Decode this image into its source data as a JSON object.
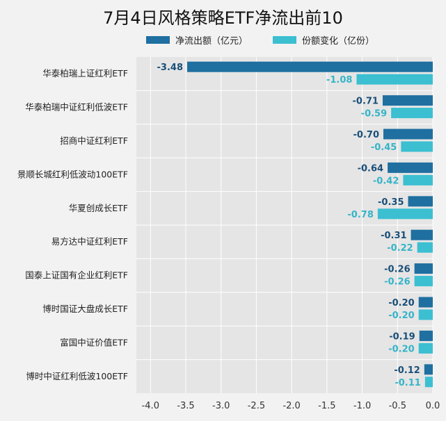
{
  "chart_data": {
    "type": "bar",
    "orientation": "horizontal",
    "title": "7月4日风格策略ETF净流出前10",
    "categories": [
      "华泰柏瑞上证红利ETF",
      "华泰柏瑞中证红利低波ETF",
      "招商中证红利ETF",
      "景顺长城红利低波动100ETF",
      "华夏创成长ETF",
      "易方达中证红利ETF",
      "国泰上证国有企业红利ETF",
      "博时国证大盘成长ETF",
      "富国中证价值ETF",
      "博时中证红利低波100ETF"
    ],
    "series": [
      {
        "name": "净流出额（亿元）",
        "color": "#1f6fa0",
        "label_color": "#1a4f78",
        "values": [
          -3.48,
          -0.71,
          -0.7,
          -0.64,
          -0.35,
          -0.31,
          -0.26,
          -0.2,
          -0.19,
          -0.12
        ],
        "labels": [
          "-3.48",
          "-0.71",
          "-0.70",
          "-0.64",
          "-0.35",
          "-0.31",
          "-0.26",
          "-0.20",
          "-0.19",
          "-0.12"
        ]
      },
      {
        "name": "份额变化（亿份）",
        "color": "#3bbfd1",
        "label_color": "#36b4c8",
        "values": [
          -1.08,
          -0.59,
          -0.45,
          -0.42,
          -0.78,
          -0.22,
          -0.26,
          -0.2,
          -0.2,
          -0.11
        ],
        "labels": [
          "-1.08",
          "-0.59",
          "-0.45",
          "-0.42",
          "-0.78",
          "-0.22",
          "-0.26",
          "-0.20",
          "-0.20",
          "-0.11"
        ]
      }
    ],
    "xlim": [
      -4.2,
      0.0
    ],
    "xticks": [
      -4.0,
      -3.5,
      -3.0,
      -2.5,
      -2.0,
      -1.5,
      -1.0,
      -0.5,
      0.0
    ],
    "xtick_labels": [
      "-4.0",
      "-3.5",
      "-3.0",
      "-2.5",
      "-2.0",
      "-1.5",
      "-1.0",
      "-0.5",
      "0.0"
    ],
    "grid": true,
    "legend_position": "top",
    "background_color": "#e5e5e5"
  }
}
